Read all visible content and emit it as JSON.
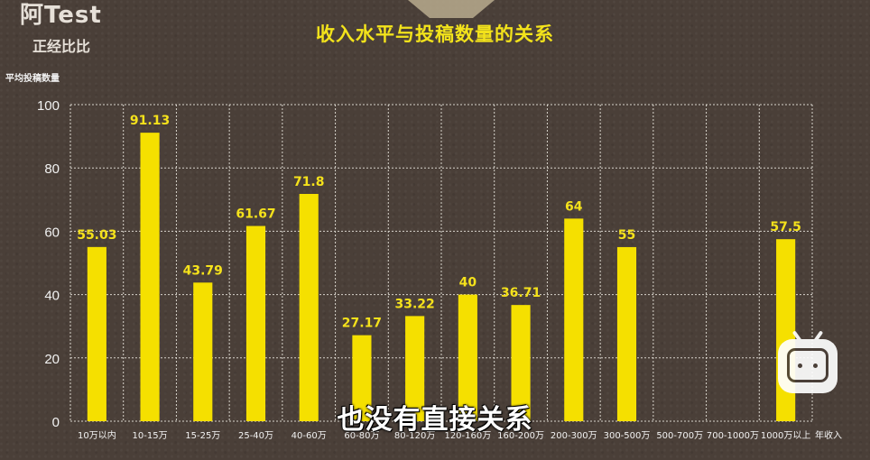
{
  "brand": {
    "title": "阿Test",
    "subtitle": "正经比比"
  },
  "subtitle_caption": "也没有直接关系",
  "colors": {
    "bar": "#f5e000",
    "label": "#f5e21b",
    "grid": "#d8d4cc",
    "text": "#f2f2f2"
  },
  "chart_data": {
    "type": "bar",
    "title": "收入水平与投稿数量的关系",
    "ylabel": "平均投稿数量",
    "xlabel": "年收入",
    "ylim": [
      0,
      100
    ],
    "yticks": [
      0,
      20,
      40,
      60,
      80,
      100
    ],
    "grid": true,
    "categories": [
      "10万以内",
      "10-15万",
      "15-25万",
      "25-40万",
      "40-60万",
      "60-80万",
      "80-120万",
      "120-160万",
      "160-200万",
      "200-300万",
      "300-500万",
      "500-700万",
      "700-1000万",
      "1000万以上"
    ],
    "values": [
      55.03,
      91.13,
      43.79,
      61.67,
      71.8,
      27.17,
      33.22,
      40,
      36.71,
      64,
      55,
      null,
      null,
      57.5
    ],
    "value_labels": [
      "55.03",
      "91.13",
      "43.79",
      "61.67",
      "71.8",
      "27.17",
      "33.22",
      "40",
      "36.71",
      "64",
      "55",
      "",
      "",
      "57.5"
    ]
  }
}
